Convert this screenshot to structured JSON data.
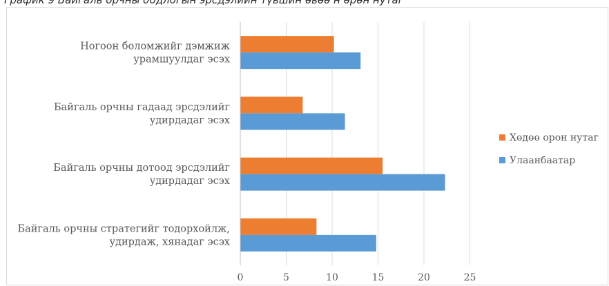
{
  "caption": "График 9 Байгаль орчны бодлогын эрсдэлийн түвшин өвөө н өрөн нутаг",
  "chart_data": {
    "type": "bar",
    "orientation": "horizontal",
    "categories": [
      [
        "Ногоон боломжийг дэмжиж",
        "урамшуулдаг эсэх"
      ],
      [
        "Байгаль орчны гадаад эрсдэлийг",
        "удирдадаг эсэх"
      ],
      [
        "Байгаль орчны дотоод эрсдэлийг",
        "удирдадаг эсэх"
      ],
      [
        "Байгаль орчны стратегийг тодорхойлж,",
        "удирдаж, хянадаг эсэх"
      ]
    ],
    "series": [
      {
        "name": "Хөдөө орон нутаг",
        "color": "#ed7d31",
        "values": [
          10.2,
          6.8,
          15.5,
          8.3
        ]
      },
      {
        "name": "Улаанбаатар",
        "color": "#5b9bd5",
        "values": [
          13.1,
          11.4,
          22.3,
          14.8
        ]
      }
    ],
    "xlim": [
      0,
      25
    ],
    "xticks": [
      0,
      5,
      10,
      15,
      20,
      25
    ],
    "grid": true,
    "legend_position": "right"
  }
}
